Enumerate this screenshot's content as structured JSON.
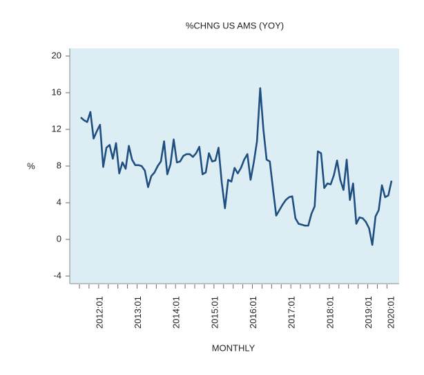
{
  "chart_data": {
    "type": "line",
    "title": "%CHNG US AMS (YOY)",
    "x_label": "MONTHLY",
    "y_label": "%",
    "categories": [
      null,
      null,
      null,
      null,
      null,
      null,
      "2012:01",
      null,
      null,
      null,
      null,
      null,
      null,
      null,
      null,
      null,
      null,
      null,
      "2013:01",
      null,
      null,
      null,
      null,
      null,
      null,
      null,
      null,
      null,
      null,
      null,
      "2014:01",
      null,
      null,
      null,
      null,
      null,
      null,
      null,
      null,
      null,
      null,
      null,
      "2015:01",
      null,
      null,
      null,
      null,
      null,
      null,
      null,
      null,
      null,
      null,
      null,
      "2016:01",
      null,
      null,
      null,
      null,
      null,
      null,
      null,
      null,
      null,
      null,
      null,
      "2017:01",
      null,
      null,
      null,
      null,
      null,
      null,
      null,
      null,
      null,
      null,
      null,
      "2018:01",
      null,
      null,
      null,
      null,
      null,
      null,
      null,
      null,
      null,
      null,
      null,
      "2019:01",
      null,
      null,
      null,
      null,
      null,
      null,
      "2020:01"
    ],
    "series": [
      {
        "name": "%CHNG US AMS",
        "color": "#1f4e80",
        "values": [
          13.3,
          13.0,
          12.8,
          13.9,
          11.0,
          11.8,
          12.5,
          7.9,
          10.0,
          10.3,
          8.8,
          10.5,
          7.2,
          8.4,
          7.7,
          10.2,
          8.7,
          8.1,
          8.1,
          8.0,
          7.5,
          5.7,
          6.9,
          7.3,
          8.0,
          8.5,
          10.7,
          7.1,
          8.2,
          10.9,
          8.4,
          8.5,
          9.1,
          9.3,
          9.3,
          9.0,
          9.4,
          10.1,
          7.1,
          7.3,
          9.4,
          8.5,
          8.6,
          10.0,
          6.2,
          3.4,
          6.5,
          6.3,
          7.8,
          7.2,
          7.8,
          8.7,
          9.3,
          6.5,
          8.4,
          10.7,
          16.5,
          12.0,
          8.7,
          8.5,
          5.5,
          2.6,
          3.2,
          3.8,
          4.3,
          4.6,
          4.7,
          2.3,
          1.7,
          1.6,
          1.5,
          1.5,
          2.8,
          3.6,
          9.6,
          9.4,
          5.6,
          6.1,
          6.0,
          7.0,
          8.6,
          6.5,
          5.4,
          8.7,
          4.3,
          6.1,
          1.7,
          2.4,
          2.3,
          1.9,
          1.2,
          -0.6,
          2.5,
          3.2,
          5.9,
          4.6,
          4.8,
          6.4
        ]
      }
    ],
    "ylim": [
      -4.83,
      20.83
    ],
    "yticks": [
      -4,
      0,
      4,
      8,
      12,
      16,
      20
    ],
    "background": "#dcedf3"
  }
}
